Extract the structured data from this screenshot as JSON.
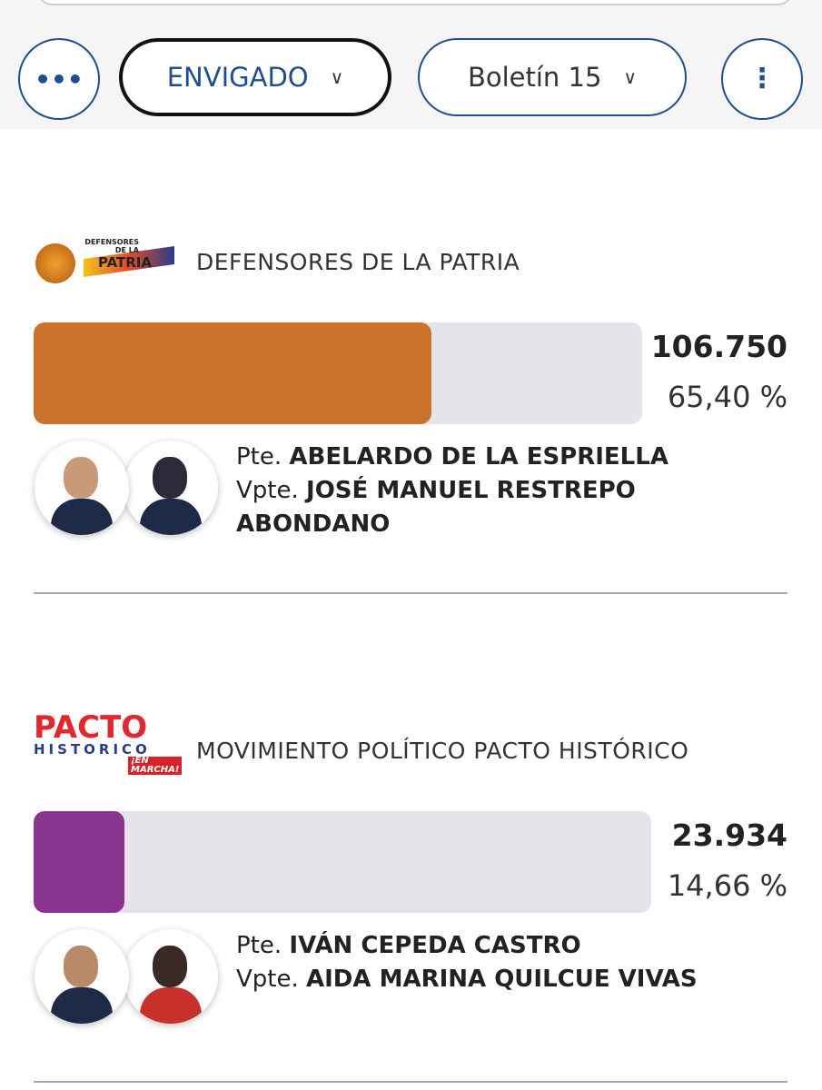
{
  "toolbar": {
    "location": "ENVIGADO",
    "bulletin": "Boletín 15"
  },
  "results": [
    {
      "logo": {
        "lines": [
          "DEFENSORES",
          "DE LA",
          "PATRIA"
        ]
      },
      "party": "DEFENSORES DE LA PATRIA",
      "votes": "106.750",
      "percent": {
        "value": 65.4,
        "label": "65,40 %"
      },
      "color": "#cd722a",
      "president_role": "Pte.",
      "president": "ABELARDO DE LA ESPRIELLA",
      "vice_role": "Vpte.",
      "vice": "JOSÉ MANUEL RESTREPO ABONDANO"
    },
    {
      "logo": {
        "lines": [
          "PACTO",
          "HISTORICO",
          "¡EN MARCHA!"
        ]
      },
      "party": "MOVIMIENTO POLÍTICO PACTO HISTÓRICO",
      "votes": "23.934",
      "percent": {
        "value": 14.66,
        "label": "14,66 %"
      },
      "color": "#8a3590",
      "president_role": "Pte.",
      "president": "IVÁN CEPEDA CASTRO",
      "vice_role": "Vpte.",
      "vice": "AIDA MARINA QUILCUE VIVAS"
    }
  ]
}
